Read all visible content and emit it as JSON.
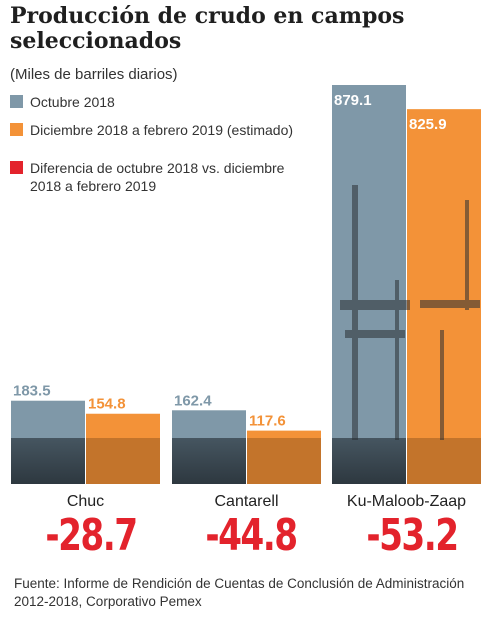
{
  "chart_data": {
    "type": "bar",
    "title": "Producción de crudo en campos seleccionados",
    "subtitle": "(Miles de barriles diarios)",
    "categories": [
      "Chuc",
      "Cantarell",
      "Ku-Maloob-Zaap"
    ],
    "series": [
      {
        "name": "Octubre 2018",
        "color": "#7f98a8",
        "values": [
          183.5,
          162.4,
          879.1
        ]
      },
      {
        "name": "Diciembre 2018 a febrero 2019 (estimado)",
        "color": "#f39238",
        "values": [
          154.8,
          117.6,
          825.9
        ]
      }
    ],
    "difference": {
      "name": "Diferencia de octubre 2018 vs. diciembre 2018 a febrero 2019",
      "color": "#e3232c",
      "values": [
        "-28.7",
        "-44.8",
        "-53.2"
      ]
    },
    "ylim": [
      0,
      900
    ],
    "legend_position": "top-left",
    "grid": false
  },
  "legend": [
    {
      "label": "Octubre 2018",
      "color": "#7f98a8"
    },
    {
      "label": "Diciembre 2018 a febrero 2019 (estimado)",
      "color": "#f39238"
    },
    {
      "label": "Diferencia de octubre 2018 vs. diciembre 2018 a febrero 2019",
      "color": "#e3232c"
    }
  ],
  "footer": "Fuente: Informe de Rendición de Cuentas de Conclusión de Administración 2012-2018, Corporativo Pemex"
}
